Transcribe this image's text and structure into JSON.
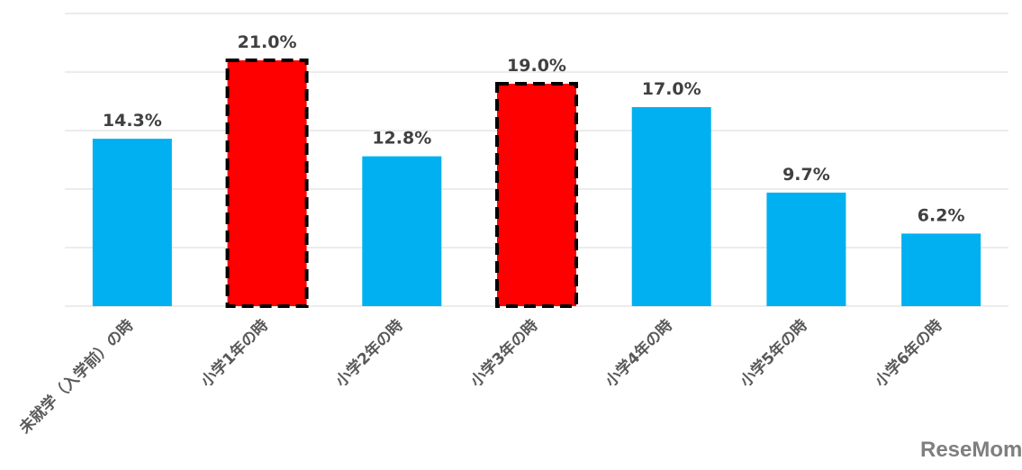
{
  "chart_data": {
    "type": "bar",
    "title": "",
    "xlabel": "",
    "ylabel": "",
    "ylim": [
      0,
      25
    ],
    "grid": true,
    "gridlines": [
      5,
      10,
      15,
      20,
      25
    ],
    "categories": [
      "未就学（入学前）の時",
      "小学1年の時",
      "小学2年の時",
      "小学3年の時",
      "小学4年の時",
      "小学5年の時",
      "小学6年の時"
    ],
    "values": [
      14.3,
      21.0,
      12.8,
      19.0,
      17.0,
      9.7,
      6.2
    ],
    "data_labels": [
      "14.3%",
      "21.0%",
      "12.8%",
      "19.0%",
      "17.0%",
      "9.7%",
      "6.2%"
    ],
    "highlighted": [
      false,
      true,
      false,
      true,
      false,
      false,
      false
    ],
    "colors": {
      "bar": "#00B0F0",
      "highlight": "#FF0000",
      "highlight_border": "#000000",
      "grid": "#D9D9D9"
    }
  },
  "watermark": "ReseMom"
}
